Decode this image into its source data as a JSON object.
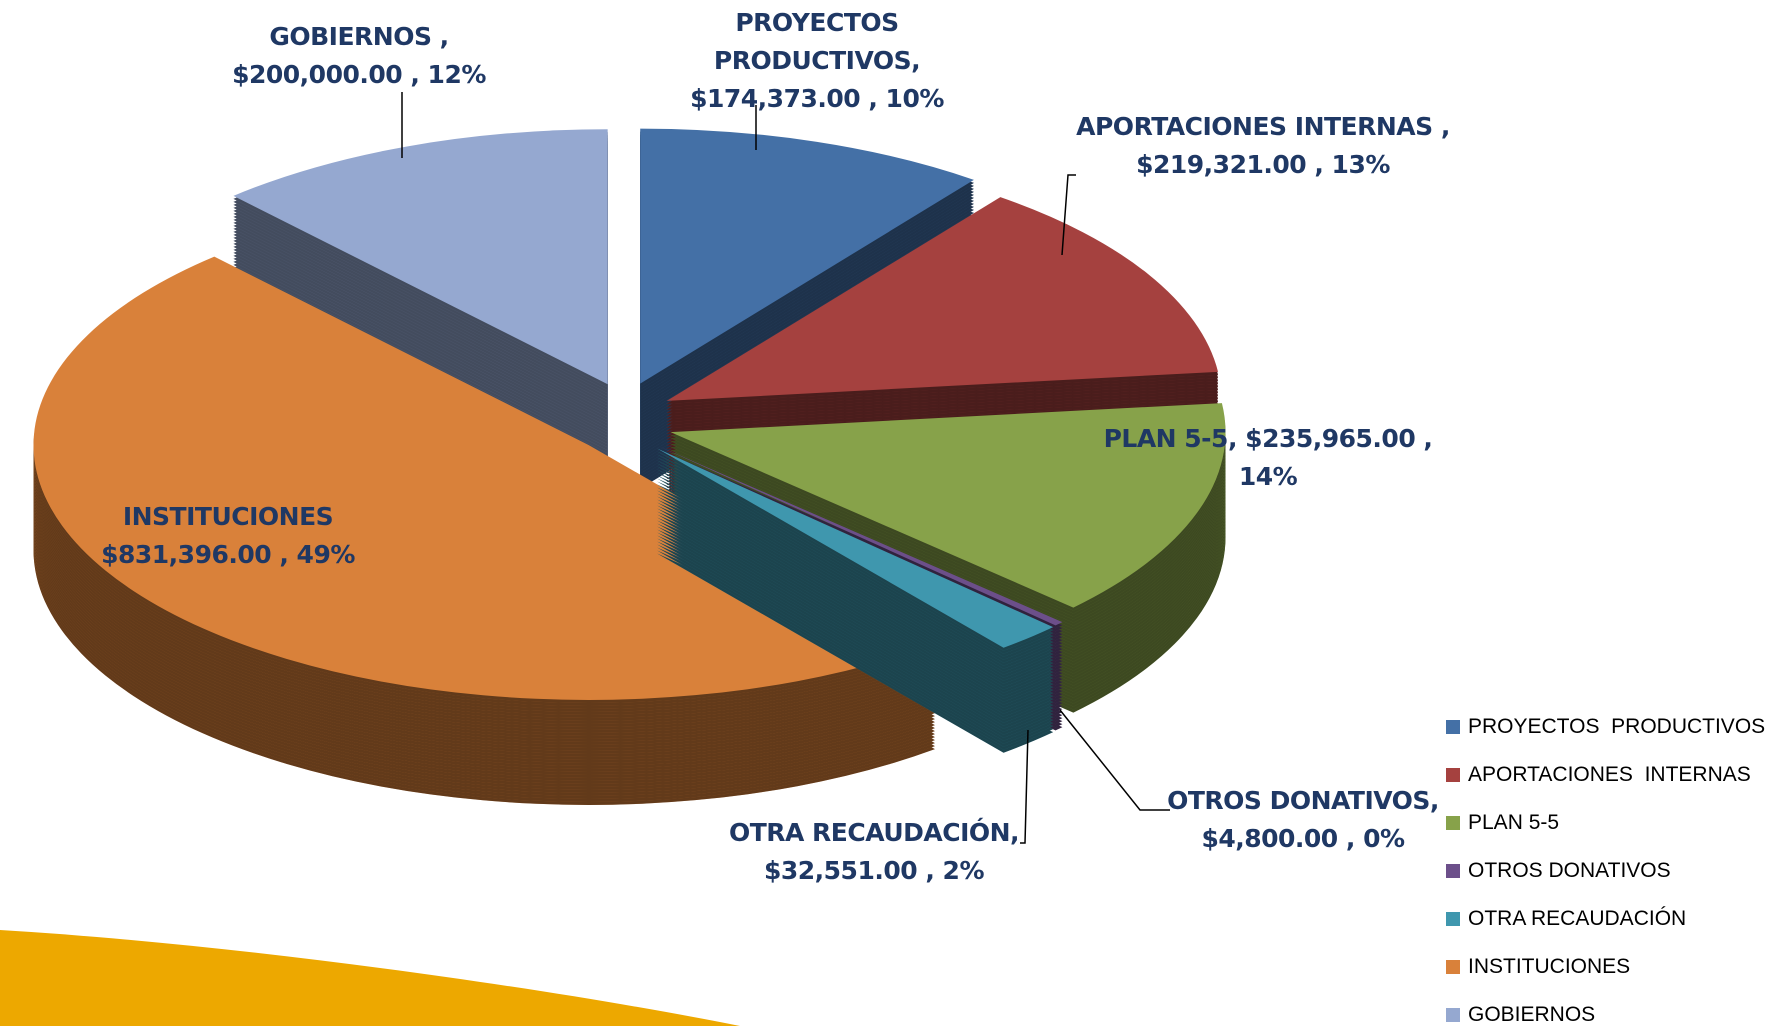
{
  "chart_data": {
    "type": "pie3d",
    "categories": [
      "PROYECTOS  PRODUCTIVOS",
      "APORTACIONES  INTERNAS",
      "PLAN 5-5",
      "OTROS DONATIVOS",
      "OTRA RECAUDACIÓN",
      "INSTITUCIONES",
      "GOBIERNOS"
    ],
    "label_names": [
      "PROYECTOS PRODUCTIVOS,",
      "APORTACIONES INTERNAS ,",
      "PLAN 5-5,",
      "OTROS DONATIVOS,",
      "OTRA RECAUDACIÓN,",
      "INSTITUCIONES",
      "GOBIERNOS ,"
    ],
    "values": [
      174373,
      219321,
      235965,
      4800,
      32551,
      831396,
      200000
    ],
    "value_labels": [
      "$174,373.00 , 10%",
      "$219,321.00 , 13%",
      "$235,965.00 , 14%",
      "$4,800.00 , 0%",
      "$32,551.00 , 2%",
      "$831,396.00 , 49%",
      "$200,000.00 , 12%"
    ],
    "colors": [
      "#4470a6",
      "#a5413f",
      "#87a24a",
      "#6c4f8a",
      "#3f97ae",
      "#d9813a",
      "#95a8d0"
    ],
    "legend": "bottom-right"
  }
}
